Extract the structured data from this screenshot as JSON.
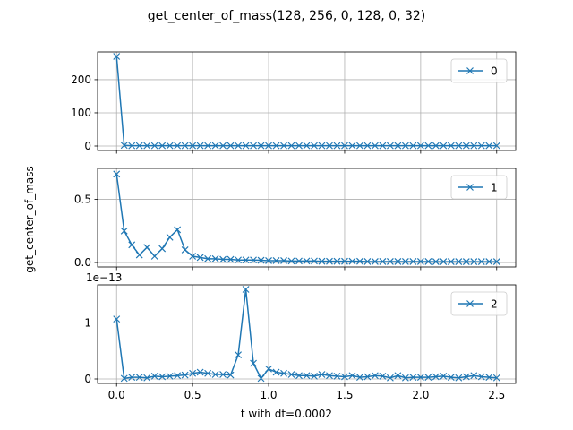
{
  "chart_data": {
    "type": "line",
    "title": "get_center_of_mass(128, 256, 0, 128, 0, 32)",
    "xlabel": "t with dt=0.0002",
    "ylabel": "get_center_of_mass",
    "xlim": [
      -0.125,
      2.625
    ],
    "xticks": [
      "0.0",
      "0.5",
      "1.0",
      "1.5",
      "2.0",
      "2.5"
    ],
    "xtick_values": [
      0,
      0.5,
      1.0,
      1.5,
      2.0,
      2.5
    ],
    "grid": true,
    "color": "#1f77b4",
    "marker": "x",
    "x": [
      0,
      0.05,
      0.1,
      0.15,
      0.2,
      0.25,
      0.3,
      0.35,
      0.4,
      0.45,
      0.5,
      0.55,
      0.6,
      0.65,
      0.7,
      0.75,
      0.8,
      0.85,
      0.9,
      0.95,
      1.0,
      1.05,
      1.1,
      1.15,
      1.2,
      1.25,
      1.3,
      1.35,
      1.4,
      1.45,
      1.5,
      1.55,
      1.6,
      1.65,
      1.7,
      1.75,
      1.8,
      1.85,
      1.9,
      1.95,
      2.0,
      2.05,
      2.1,
      2.15,
      2.2,
      2.25,
      2.3,
      2.35,
      2.4,
      2.45,
      2.5
    ],
    "subplots": [
      {
        "legend": "0",
        "legend_position": "upper right",
        "ylim": [
          -13.5,
          283.5
        ],
        "yticks": [
          "0",
          "100",
          "200"
        ],
        "ytick_values": [
          0,
          100,
          200
        ],
        "offset_text": "",
        "values": [
          270,
          2,
          1,
          1,
          1,
          1,
          1,
          1,
          1,
          1,
          1,
          1,
          1,
          1,
          1,
          1,
          1,
          1,
          1,
          1,
          1,
          1,
          1,
          1,
          1,
          1,
          1,
          1,
          1,
          1,
          1,
          1,
          1,
          1,
          1,
          1,
          1,
          1,
          1,
          1,
          1,
          1,
          1,
          1,
          1,
          1,
          1,
          1,
          1,
          1,
          1
        ]
      },
      {
        "legend": "1",
        "legend_position": "upper right",
        "ylim": [
          -0.035,
          0.745
        ],
        "yticks": [
          "0.0",
          "0.5"
        ],
        "ytick_values": [
          0,
          0.5
        ],
        "offset_text": "",
        "values": [
          0.7,
          0.25,
          0.14,
          0.06,
          0.12,
          0.05,
          0.11,
          0.2,
          0.26,
          0.1,
          0.05,
          0.04,
          0.03,
          0.03,
          0.025,
          0.025,
          0.02,
          0.02,
          0.02,
          0.018,
          0.015,
          0.015,
          0.015,
          0.012,
          0.012,
          0.012,
          0.012,
          0.01,
          0.01,
          0.01,
          0.01,
          0.01,
          0.01,
          0.008,
          0.008,
          0.008,
          0.008,
          0.008,
          0.008,
          0.008,
          0.008,
          0.008,
          0.007,
          0.007,
          0.007,
          0.007,
          0.007,
          0.007,
          0.007,
          0.007,
          0.007
        ]
      },
      {
        "legend": "2",
        "legend_position": "upper right",
        "ylim": [
          -0.08,
          1.68
        ],
        "yticks": [
          "0",
          "1"
        ],
        "ytick_values": [
          0,
          1
        ],
        "offset_text": "1e−13",
        "values": [
          1.07,
          0.01,
          0.03,
          0.03,
          0.02,
          0.05,
          0.04,
          0.05,
          0.06,
          0.07,
          0.1,
          0.12,
          0.1,
          0.08,
          0.08,
          0.07,
          0.43,
          1.6,
          0.28,
          0.01,
          0.18,
          0.12,
          0.1,
          0.08,
          0.06,
          0.06,
          0.05,
          0.08,
          0.06,
          0.05,
          0.04,
          0.06,
          0.03,
          0.04,
          0.06,
          0.05,
          0.02,
          0.06,
          0.02,
          0.03,
          0.03,
          0.03,
          0.04,
          0.05,
          0.03,
          0.02,
          0.04,
          0.06,
          0.04,
          0.03,
          0.02
        ]
      }
    ]
  }
}
